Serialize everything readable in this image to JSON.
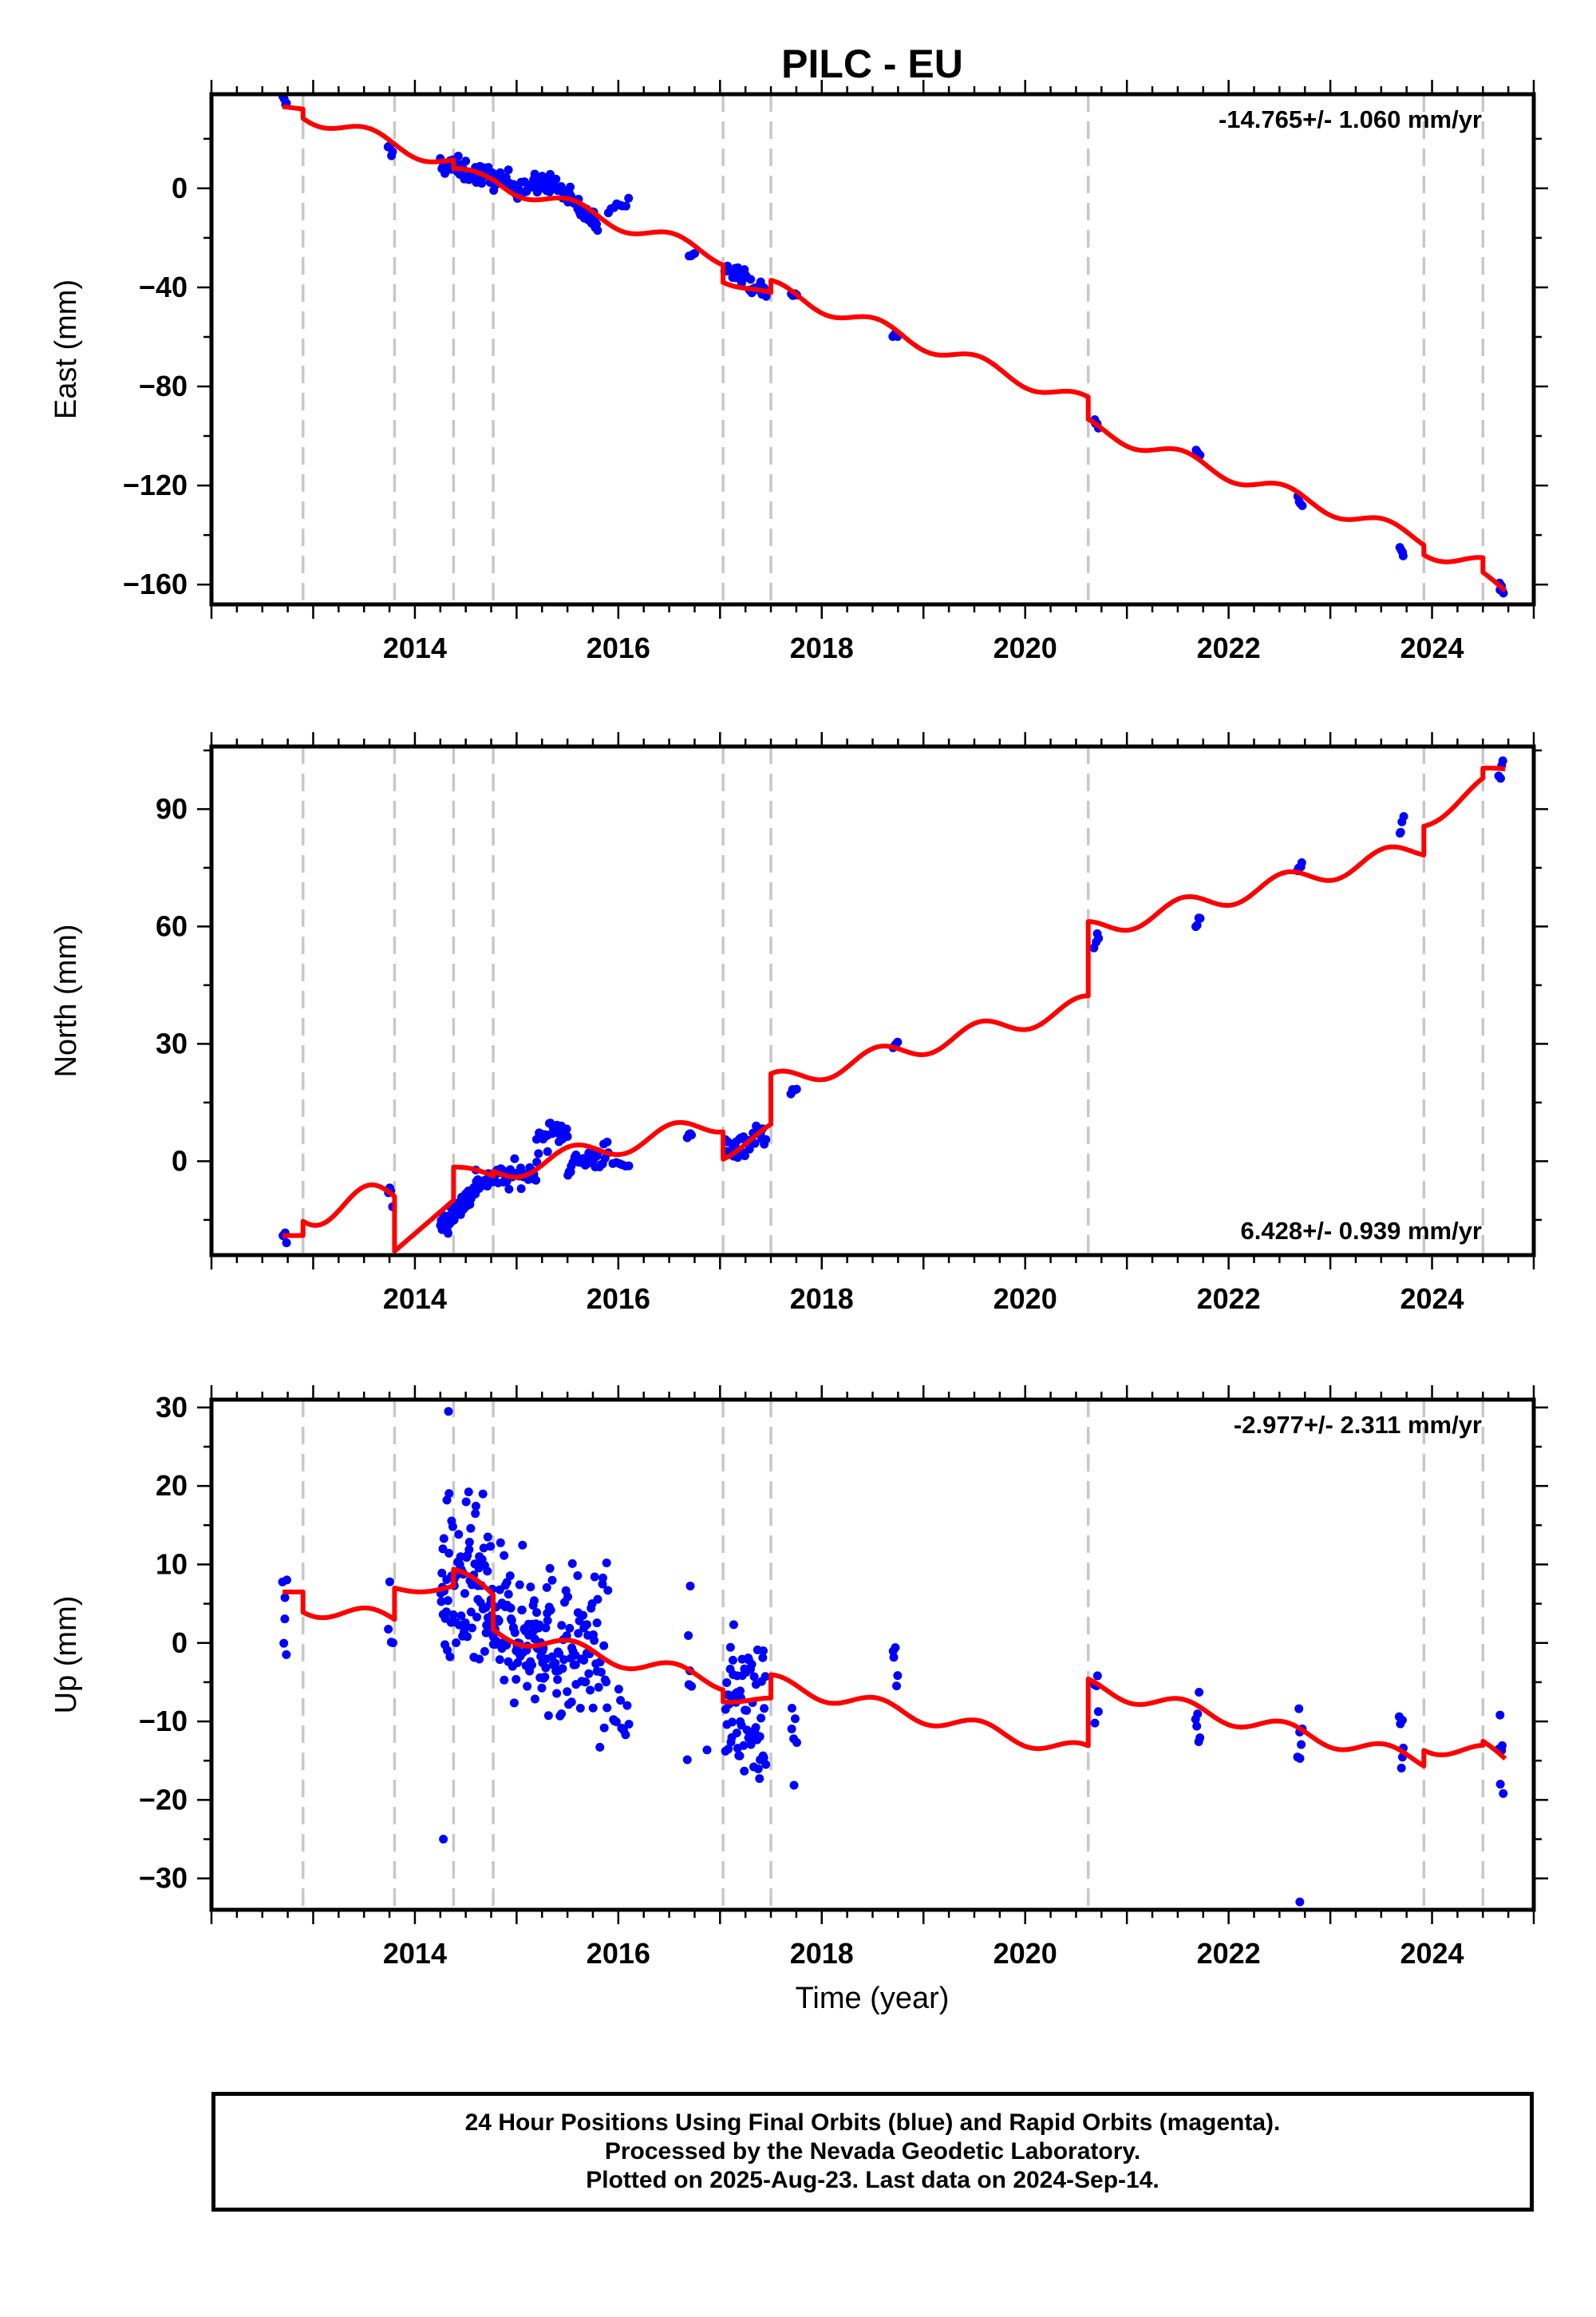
{
  "chart_data": [
    {
      "type": "scatter",
      "title": "PILC - EU",
      "ylabel": "East (mm)",
      "xlabel": "",
      "annotation": "-14.765+/- 1.060 mm/yr",
      "xlim": [
        2012.0,
        2025.0
      ],
      "ylim": [
        -168,
        38
      ],
      "xticks": [
        2014,
        2016,
        2018,
        2020,
        2022,
        2024
      ],
      "yticks": [
        -160,
        -120,
        -80,
        -40,
        0
      ],
      "grid": false,
      "break_lines": [
        2012.9,
        2013.8,
        2014.38,
        2014.77,
        2017.03,
        2017.5,
        2020.62,
        2023.92,
        2024.5
      ],
      "colors": {
        "points": "#0000ff",
        "model": "#ff0000",
        "breaks": "#c8c8c8"
      },
      "series": [
        {
          "kind": "points",
          "clusters": [
            {
              "x": [
                2012.7,
                2012.74
              ],
              "y": [
                36,
                33
              ],
              "spread": 2
            },
            {
              "x": [
                2013.74,
                2013.78
              ],
              "y": [
                17,
                14
              ],
              "spread": 2
            },
            {
              "x": [
                2014.25,
                2014.95
              ],
              "y": [
                10,
                2
              ],
              "spread": 4,
              "n": 60
            },
            {
              "x": [
                2014.95,
                2015.3
              ],
              "y": [
                1,
                1
              ],
              "spread": 4,
              "n": 30
            },
            {
              "x": [
                2015.3,
                2015.8
              ],
              "y": [
                4,
                -15
              ],
              "spread": 4,
              "n": 45
            },
            {
              "x": [
                2015.9,
                2016.1
              ],
              "y": [
                -8,
                -5
              ],
              "spread": 2,
              "n": 8
            },
            {
              "x": [
                2016.7,
                2016.75
              ],
              "y": [
                -27,
                -27
              ],
              "spread": 1
            },
            {
              "x": [
                2017.05,
                2017.45
              ],
              "y": [
                -30,
                -43
              ],
              "spread": 3,
              "n": 30
            },
            {
              "x": [
                2017.7,
                2017.75
              ],
              "y": [
                -43,
                -43
              ],
              "spread": 1
            },
            {
              "x": [
                2018.7,
                2018.75
              ],
              "y": [
                -59,
                -60
              ],
              "spread": 1
            },
            {
              "x": [
                2020.68,
                2020.72
              ],
              "y": [
                -93,
                -97
              ],
              "spread": 2
            },
            {
              "x": [
                2021.68,
                2021.72
              ],
              "y": [
                -106,
                -108
              ],
              "spread": 1
            },
            {
              "x": [
                2022.68,
                2022.72
              ],
              "y": [
                -125,
                -128
              ],
              "spread": 1
            },
            {
              "x": [
                2023.68,
                2023.72
              ],
              "y": [
                -145,
                -148
              ],
              "spread": 1
            },
            {
              "x": [
                2024.66,
                2024.7
              ],
              "y": [
                -159,
                -163
              ],
              "spread": 2
            }
          ]
        },
        {
          "kind": "model",
          "segments": [
            {
              "x0": 2012.7,
              "x1": 2012.9,
              "y0": 33,
              "y1": 32,
              "amp": 0
            },
            {
              "x0": 2012.9,
              "x1": 2014.38,
              "y0": 30,
              "y1": 10,
              "amp": 3
            },
            {
              "x0": 2014.38,
              "x1": 2014.77,
              "y0": 7,
              "y1": 3,
              "amp": 2
            },
            {
              "x0": 2014.77,
              "x1": 2017.03,
              "y0": 3,
              "y1": -28,
              "amp": 3
            },
            {
              "x0": 2017.03,
              "x1": 2017.5,
              "y0": -36,
              "y1": -44,
              "amp": 2
            },
            {
              "x0": 2017.5,
              "x1": 2020.62,
              "y0": -40,
              "y1": -87,
              "amp": 3
            },
            {
              "x0": 2020.62,
              "x1": 2023.92,
              "y0": -96,
              "y1": -142,
              "amp": 3
            },
            {
              "x0": 2023.92,
              "x1": 2024.5,
              "y0": -146,
              "y1": -152,
              "amp": 3
            },
            {
              "x0": 2024.5,
              "x1": 2024.72,
              "y0": -156,
              "y1": -163,
              "amp": 1
            }
          ]
        }
      ]
    },
    {
      "type": "scatter",
      "title": "",
      "ylabel": "North (mm)",
      "xlabel": "",
      "annotation": "6.428+/- 0.939 mm/yr",
      "xlim": [
        2012.0,
        2025.0
      ],
      "ylim": [
        -24,
        106
      ],
      "xticks": [
        2014,
        2016,
        2018,
        2020,
        2022,
        2024
      ],
      "yticks": [
        0,
        30,
        60,
        90
      ],
      "grid": false,
      "break_lines": [
        2012.9,
        2013.8,
        2014.38,
        2014.77,
        2017.03,
        2017.5,
        2020.62,
        2023.92,
        2024.5
      ],
      "colors": {
        "points": "#0000ff",
        "model": "#ff0000",
        "breaks": "#c8c8c8"
      },
      "series": [
        {
          "kind": "points",
          "clusters": [
            {
              "x": [
                2012.7,
                2012.74
              ],
              "y": [
                -18,
                -22
              ],
              "spread": 2
            },
            {
              "x": [
                2013.74,
                2013.78
              ],
              "y": [
                -7,
                -10
              ],
              "spread": 2
            },
            {
              "x": [
                2014.25,
                2014.6
              ],
              "y": [
                -17,
                -7
              ],
              "spread": 3,
              "n": 40
            },
            {
              "x": [
                2014.6,
                2015.2
              ],
              "y": [
                -5,
                -3
              ],
              "spread": 3,
              "n": 45
            },
            {
              "x": [
                2015.2,
                2015.5
              ],
              "y": [
                6,
                8
              ],
              "spread": 3,
              "n": 25
            },
            {
              "x": [
                2015.5,
                2015.9
              ],
              "y": [
                -1,
                2
              ],
              "spread": 3,
              "n": 30
            },
            {
              "x": [
                2015.95,
                2016.1
              ],
              "y": [
                -1,
                -1
              ],
              "spread": 1,
              "n": 6
            },
            {
              "x": [
                2016.68,
                2016.72
              ],
              "y": [
                6,
                7
              ],
              "spread": 1
            },
            {
              "x": [
                2017.05,
                2017.45
              ],
              "y": [
                3,
                7
              ],
              "spread": 3,
              "n": 30
            },
            {
              "x": [
                2017.7,
                2017.75
              ],
              "y": [
                18,
                19
              ],
              "spread": 1
            },
            {
              "x": [
                2018.7,
                2018.75
              ],
              "y": [
                29,
                30
              ],
              "spread": 1
            },
            {
              "x": [
                2020.68,
                2020.72
              ],
              "y": [
                54,
                57
              ],
              "spread": 2
            },
            {
              "x": [
                2021.68,
                2021.72
              ],
              "y": [
                60,
                63
              ],
              "spread": 1
            },
            {
              "x": [
                2022.68,
                2022.72
              ],
              "y": [
                74,
                76
              ],
              "spread": 1
            },
            {
              "x": [
                2023.68,
                2023.72
              ],
              "y": [
                82,
                87
              ],
              "spread": 2
            },
            {
              "x": [
                2024.66,
                2024.7
              ],
              "y": [
                98,
                102
              ],
              "spread": 2
            }
          ]
        },
        {
          "kind": "model",
          "segments": [
            {
              "x0": 2012.7,
              "x1": 2012.9,
              "y0": -19,
              "y1": -19,
              "amp": 0
            },
            {
              "x0": 2012.9,
              "x1": 2013.8,
              "y0": -13,
              "y1": -9,
              "amp": 4
            },
            {
              "x0": 2013.8,
              "x1": 2014.38,
              "y0": -23,
              "y1": -10,
              "amp": 0
            },
            {
              "x0": 2014.38,
              "x1": 2014.77,
              "y0": -2,
              "y1": -4,
              "amp": 1
            },
            {
              "x0": 2014.77,
              "x1": 2017.03,
              "y0": -3,
              "y1": 10,
              "amp": 2.5
            },
            {
              "x0": 2017.03,
              "x1": 2017.5,
              "y0": 2,
              "y1": 8,
              "amp": 1.5
            },
            {
              "x0": 2017.5,
              "x1": 2020.62,
              "y0": 20,
              "y1": 40,
              "amp": 2.5
            },
            {
              "x0": 2020.62,
              "x1": 2023.92,
              "y0": 59,
              "y1": 80,
              "amp": 2.5
            },
            {
              "x0": 2023.92,
              "x1": 2024.5,
              "y0": 87,
              "y1": 96,
              "amp": 2
            },
            {
              "x0": 2024.5,
              "x1": 2024.72,
              "y0": 100,
              "y1": 100,
              "amp": 0.5
            }
          ]
        }
      ]
    },
    {
      "type": "scatter",
      "title": "",
      "ylabel": "Up (mm)",
      "xlabel": "Time (year)",
      "annotation": "-2.977+/- 2.311 mm/yr",
      "xlim": [
        2012.0,
        2025.0
      ],
      "ylim": [
        -34,
        31
      ],
      "xticks": [
        2014,
        2016,
        2018,
        2020,
        2022,
        2024
      ],
      "yticks": [
        -30,
        -20,
        -10,
        0,
        10,
        20,
        30
      ],
      "grid": false,
      "break_lines": [
        2012.9,
        2013.8,
        2014.38,
        2014.77,
        2017.03,
        2017.5,
        2020.62,
        2023.92,
        2024.5
      ],
      "colors": {
        "points": "#0000ff",
        "model": "#ff0000",
        "breaks": "#c8c8c8"
      },
      "series": [
        {
          "kind": "points",
          "clusters": [
            {
              "x": [
                2012.7,
                2012.74
              ],
              "y": [
                6,
                5
              ],
              "spread": 6,
              "n": 6
            },
            {
              "x": [
                2013.74,
                2013.78
              ],
              "y": [
                2,
                1
              ],
              "spread": 5,
              "n": 4
            },
            {
              "x": [
                2014.25,
                2014.75
              ],
              "y": [
                8,
                5
              ],
              "spread": 10,
              "n": 90
            },
            {
              "x": [
                2014.75,
                2015.3
              ],
              "y": [
                2,
                1
              ],
              "spread": 8,
              "n": 90
            },
            {
              "x": [
                2015.3,
                2015.9
              ],
              "y": [
                0,
                -2
              ],
              "spread": 9,
              "n": 80
            },
            {
              "x": [
                2015.95,
                2016.1
              ],
              "y": [
                -8,
                -10
              ],
              "spread": 4,
              "n": 10
            },
            {
              "x": [
                2016.68,
                2016.72
              ],
              "y": [
                -5,
                -5
              ],
              "spread": 9,
              "n": 6
            },
            {
              "x": [
                2016.85,
                2016.9
              ],
              "y": [
                -14,
                -14
              ],
              "spread": 1,
              "n": 1
            },
            {
              "x": [
                2017.05,
                2017.45
              ],
              "y": [
                -7,
                -9
              ],
              "spread": 8,
              "n": 70
            },
            {
              "x": [
                2017.7,
                2017.75
              ],
              "y": [
                -12,
                -12
              ],
              "spread": 6,
              "n": 6
            },
            {
              "x": [
                2018.7,
                2018.75
              ],
              "y": [
                -4,
                -5
              ],
              "spread": 5,
              "n": 5
            },
            {
              "x": [
                2020.68,
                2020.72
              ],
              "y": [
                -8,
                -9
              ],
              "spread": 4,
              "n": 5
            },
            {
              "x": [
                2021.68,
                2021.72
              ],
              "y": [
                -8,
                -9
              ],
              "spread": 5,
              "n": 6
            },
            {
              "x": [
                2022.68,
                2022.72
              ],
              "y": [
                -13,
                -14
              ],
              "spread": 5,
              "n": 6
            },
            {
              "x": [
                2023.68,
                2023.72
              ],
              "y": [
                -10,
                -11
              ],
              "spread": 5,
              "n": 6
            },
            {
              "x": [
                2024.66,
                2024.7
              ],
              "y": [
                -13,
                -14
              ],
              "spread": 4,
              "n": 6
            }
          ],
          "outliers": [
            {
              "x": 2014.33,
              "y": 29.5
            },
            {
              "x": 2014.28,
              "y": -25
            },
            {
              "x": 2022.7,
              "y": -33
            }
          ]
        },
        {
          "kind": "model",
          "segments": [
            {
              "x0": 2012.7,
              "x1": 2012.9,
              "y0": 6.5,
              "y1": 6.5,
              "amp": 0
            },
            {
              "x0": 2012.9,
              "x1": 2013.8,
              "y0": 4.5,
              "y1": 3,
              "amp": 1
            },
            {
              "x0": 2013.8,
              "x1": 2014.38,
              "y0": 7,
              "y1": 7,
              "amp": 0.5
            },
            {
              "x0": 2014.38,
              "x1": 2014.77,
              "y0": 9,
              "y1": 6,
              "amp": 0.8
            },
            {
              "x0": 2014.77,
              "x1": 2017.03,
              "y0": 1.5,
              "y1": -5,
              "amp": 1
            },
            {
              "x0": 2017.03,
              "x1": 2017.5,
              "y0": -7,
              "y1": -7.5,
              "amp": 0.5
            },
            {
              "x0": 2017.5,
              "x1": 2020.62,
              "y0": -5,
              "y1": -14,
              "amp": 1
            },
            {
              "x0": 2020.62,
              "x1": 2023.92,
              "y0": -5.5,
              "y1": -15,
              "amp": 1
            },
            {
              "x0": 2023.92,
              "x1": 2024.5,
              "y0": -13,
              "y1": -14,
              "amp": 1
            },
            {
              "x0": 2024.5,
              "x1": 2024.72,
              "y0": -13,
              "y1": -15,
              "amp": 0.5
            }
          ]
        }
      ]
    }
  ],
  "footer": {
    "line1": "24 Hour Positions Using Final Orbits (blue) and Rapid Orbits (magenta).",
    "line2": "Processed by the Nevada Geodetic Laboratory.",
    "line3": "Plotted on 2025-Aug-23. Last data on 2024-Sep-14."
  }
}
